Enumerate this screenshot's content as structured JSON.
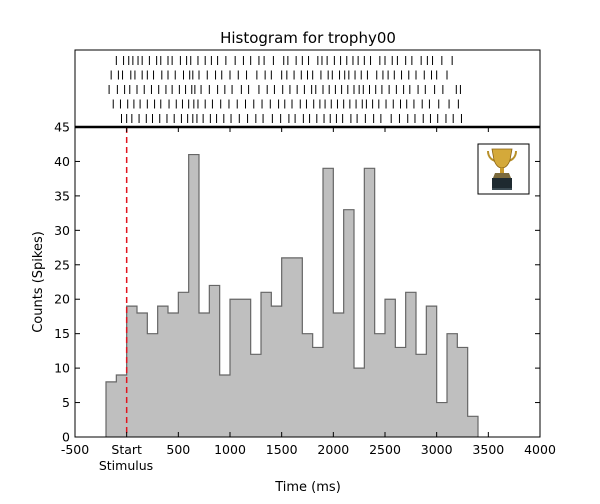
{
  "chart_data": {
    "type": "bar",
    "title": "Histogram for trophy00",
    "xlabel": "Time (ms)",
    "ylabel": "Counts (Spikes)",
    "xlim": [
      -500,
      4000
    ],
    "ylim": [
      0,
      45
    ],
    "xticks": [
      -500,
      0,
      500,
      1000,
      1500,
      2000,
      2500,
      3000,
      3500,
      4000
    ],
    "xtick_labels": [
      "-500",
      "Start",
      "500",
      "1000",
      "1500",
      "2000",
      "2500",
      "3000",
      "3500",
      "4000"
    ],
    "xtick_sublabel": "Stimulus",
    "yticks": [
      0,
      5,
      10,
      15,
      20,
      25,
      30,
      35,
      40,
      45
    ],
    "bin_width": 100,
    "bins": {
      "start": [
        -200,
        -100,
        0,
        100,
        200,
        300,
        400,
        500,
        600,
        700,
        800,
        900,
        1000,
        1100,
        1200,
        1300,
        1400,
        1500,
        1600,
        1700,
        1800,
        1900,
        2000,
        2100,
        2200,
        2300,
        2400,
        2500,
        2600,
        2700,
        2800,
        2900,
        3000,
        3100,
        3200,
        3300
      ],
      "counts": [
        8,
        9,
        19,
        18,
        15,
        19,
        18,
        21,
        41,
        18,
        22,
        9,
        20,
        20,
        12,
        21,
        19,
        26,
        26,
        15,
        13,
        39,
        18,
        33,
        10,
        39,
        15,
        20,
        13,
        21,
        12,
        19,
        5,
        15,
        13,
        3
      ]
    },
    "bar_color": "#bfbfbf",
    "edge_color": "#666666",
    "stimulus_line": {
      "x": 0,
      "color": "#e0141e",
      "style": "dashed"
    },
    "raster": {
      "trials": [
        [
          -100,
          -30,
          20,
          60,
          110,
          150,
          220,
          290,
          330,
          400,
          440,
          520,
          580,
          620,
          690,
          760,
          820,
          880,
          960,
          1050,
          1130,
          1200,
          1280,
          1330,
          1420,
          1520,
          1560,
          1640,
          1700,
          1760,
          1850,
          1890,
          1940,
          2010,
          2070,
          2130,
          2190,
          2240,
          2300,
          2360,
          2450,
          2500,
          2570,
          2620,
          2700,
          2760,
          2850,
          2910,
          2960,
          3050,
          3150
        ],
        [
          -150,
          -80,
          -40,
          40,
          80,
          150,
          200,
          260,
          340,
          400,
          470,
          550,
          610,
          640,
          700,
          780,
          860,
          920,
          1000,
          1080,
          1160,
          1260,
          1340,
          1400,
          1500,
          1550,
          1620,
          1690,
          1750,
          1800,
          1880,
          1950,
          1990,
          2060,
          2110,
          2150,
          2210,
          2270,
          2330,
          2420,
          2480,
          2530,
          2590,
          2660,
          2730,
          2800,
          2880,
          2950,
          3000,
          3100
        ],
        [
          -170,
          -90,
          -20,
          30,
          100,
          170,
          240,
          310,
          380,
          440,
          510,
          570,
          630,
          660,
          720,
          800,
          880,
          950,
          1020,
          1110,
          1180,
          1280,
          1360,
          1430,
          1510,
          1580,
          1650,
          1720,
          1790,
          1830,
          1900,
          1960,
          2020,
          2080,
          2140,
          2200,
          2250,
          2290,
          2350,
          2410,
          2470,
          2540,
          2610,
          2680,
          2740,
          2820,
          2890,
          2980,
          3060,
          3190,
          3230
        ],
        [
          -130,
          -60,
          10,
          70,
          130,
          200,
          270,
          330,
          410,
          480,
          540,
          600,
          650,
          690,
          760,
          830,
          910,
          990,
          1070,
          1150,
          1230,
          1310,
          1390,
          1470,
          1530,
          1600,
          1680,
          1740,
          1810,
          1870,
          1920,
          1980,
          2040,
          2100,
          2160,
          2220,
          2280,
          2320,
          2380,
          2440,
          2510,
          2580,
          2650,
          2710,
          2780,
          2860,
          2930,
          3020,
          3120,
          3210
        ],
        [
          -50,
          0,
          50,
          120,
          190,
          250,
          320,
          390,
          460,
          530,
          590,
          640,
          680,
          740,
          810,
          870,
          940,
          1010,
          1090,
          1170,
          1250,
          1320,
          1410,
          1490,
          1570,
          1630,
          1710,
          1770,
          1840,
          1910,
          1970,
          2030,
          2090,
          2170,
          2230,
          2310,
          2390,
          2460,
          2560,
          2640,
          2720,
          2790,
          2870,
          2940,
          3010,
          3090,
          3160,
          3240
        ]
      ]
    },
    "inset_icon": "trophy-icon"
  }
}
